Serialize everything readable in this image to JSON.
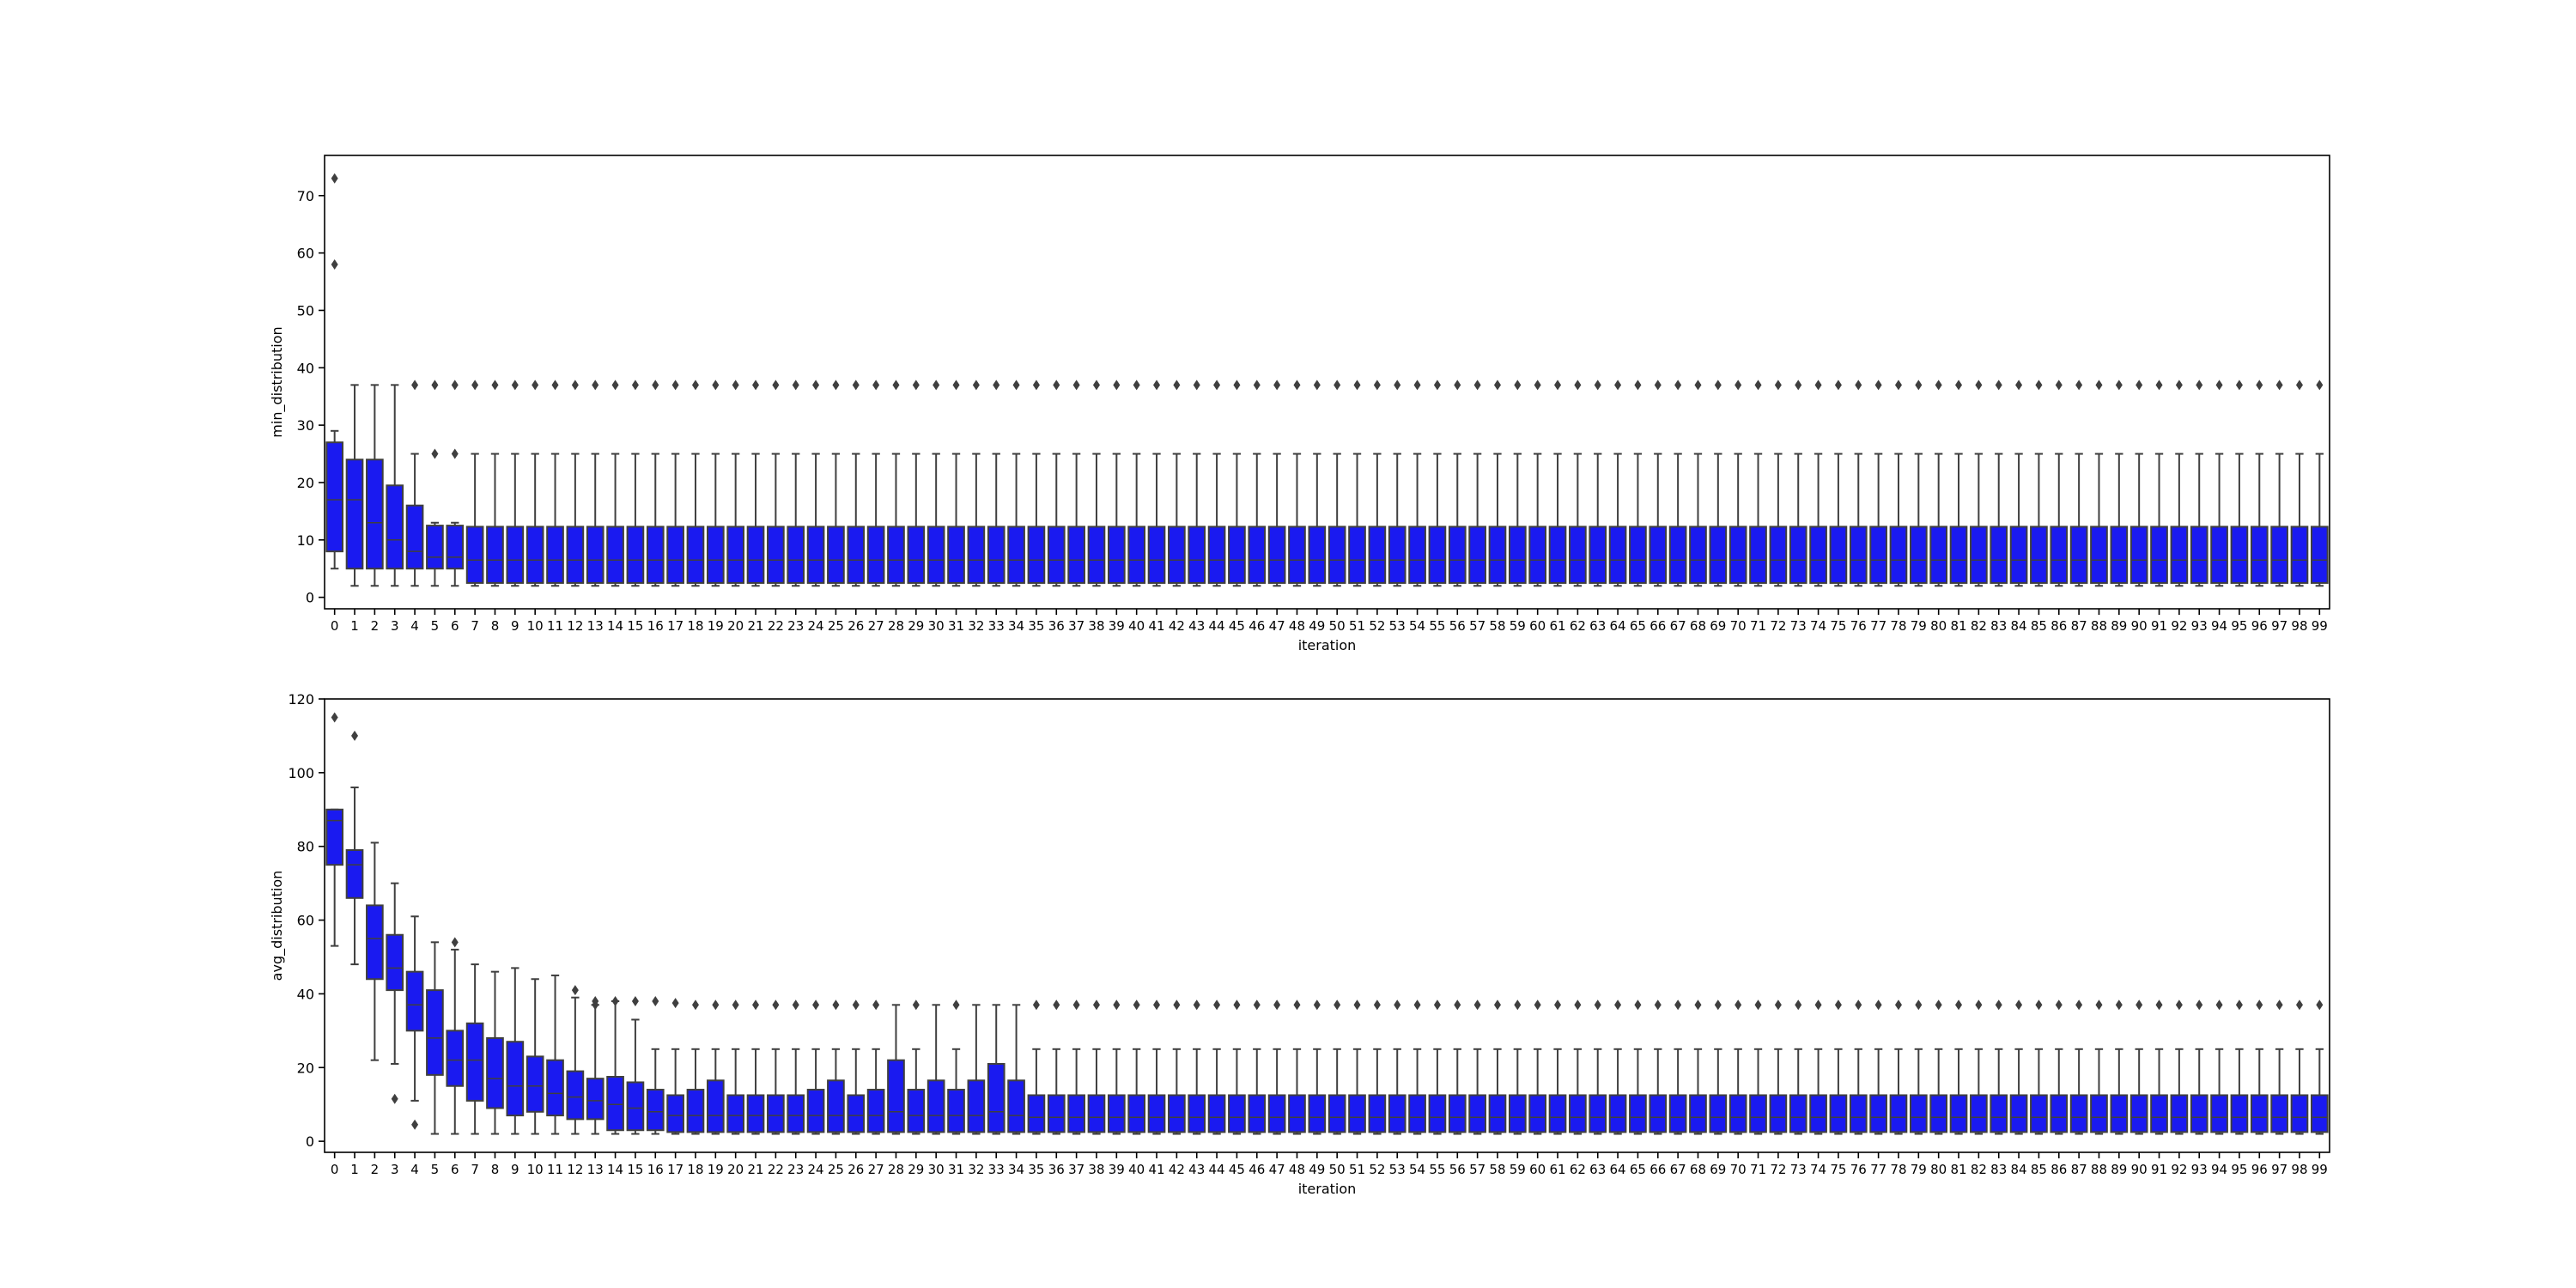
{
  "chart_data": [
    {
      "type": "box",
      "xlabel": "iteration",
      "ylabel": "min_distribution",
      "ylim": [
        -2,
        77
      ],
      "yticks": [
        0,
        10,
        20,
        30,
        40,
        50,
        60,
        70
      ],
      "x_start": 0,
      "x_end": 99,
      "box_color": "#1a1af0",
      "boxes_first": [
        {
          "x": 0,
          "q1": 8,
          "med": 17,
          "q3": 27,
          "lo": 5,
          "hi": 29,
          "fl": [
            58,
            73
          ]
        },
        {
          "x": 1,
          "q1": 5,
          "med": 17,
          "q3": 24,
          "lo": 2,
          "hi": 37,
          "fl": []
        },
        {
          "x": 2,
          "q1": 5,
          "med": 13,
          "q3": 24,
          "lo": 2,
          "hi": 37,
          "fl": []
        },
        {
          "x": 3,
          "q1": 5,
          "med": 10,
          "q3": 19.5,
          "lo": 2,
          "hi": 37,
          "fl": []
        },
        {
          "x": 4,
          "q1": 5,
          "med": 8,
          "q3": 16,
          "lo": 2,
          "hi": 25,
          "fl": [
            37
          ]
        },
        {
          "x": 5,
          "q1": 5,
          "med": 7,
          "q3": 12.5,
          "lo": 2,
          "hi": 13,
          "fl": [
            25,
            37
          ]
        },
        {
          "x": 6,
          "q1": 5,
          "med": 7,
          "q3": 12.5,
          "lo": 2,
          "hi": 13,
          "fl": [
            25,
            37
          ]
        }
      ],
      "steady": {
        "q1": 2.5,
        "med": 6.5,
        "q3": 12.3,
        "lo": 2,
        "hi": 25,
        "fl": [
          37
        ]
      }
    },
    {
      "type": "box",
      "xlabel": "iteration",
      "ylabel": "avg_distribution",
      "ylim": [
        -3,
        120
      ],
      "yticks": [
        0,
        20,
        40,
        60,
        80,
        100,
        120
      ],
      "x_start": 0,
      "x_end": 99,
      "box_color": "#1a1af0",
      "boxes_first": [
        {
          "x": 0,
          "q1": 75,
          "med": 87,
          "q3": 90,
          "lo": 53,
          "hi": 90,
          "fl": [
            115
          ]
        },
        {
          "x": 1,
          "q1": 66,
          "med": 75,
          "q3": 79,
          "lo": 48,
          "hi": 96,
          "fl": [
            110
          ]
        },
        {
          "x": 2,
          "q1": 44,
          "med": 55,
          "q3": 64,
          "lo": 22,
          "hi": 81,
          "fl": []
        },
        {
          "x": 3,
          "q1": 41,
          "med": 47,
          "q3": 56,
          "lo": 21,
          "hi": 70,
          "fl": [
            11.5
          ]
        },
        {
          "x": 4,
          "q1": 30,
          "med": 37,
          "q3": 46,
          "lo": 11,
          "hi": 61,
          "fl": [
            4.5
          ]
        },
        {
          "x": 5,
          "q1": 18,
          "med": 28,
          "q3": 41,
          "lo": 2,
          "hi": 54,
          "fl": []
        },
        {
          "x": 6,
          "q1": 15,
          "med": 22,
          "q3": 30,
          "lo": 2,
          "hi": 52,
          "fl": [
            54
          ]
        },
        {
          "x": 7,
          "q1": 11,
          "med": 22,
          "q3": 32,
          "lo": 2,
          "hi": 48,
          "fl": []
        },
        {
          "x": 8,
          "q1": 9,
          "med": 17,
          "q3": 28,
          "lo": 2,
          "hi": 46,
          "fl": []
        },
        {
          "x": 9,
          "q1": 7,
          "med": 15,
          "q3": 27,
          "lo": 2,
          "hi": 47,
          "fl": []
        },
        {
          "x": 10,
          "q1": 8,
          "med": 15,
          "q3": 23,
          "lo": 2,
          "hi": 44,
          "fl": []
        },
        {
          "x": 11,
          "q1": 7,
          "med": 13,
          "q3": 22,
          "lo": 2,
          "hi": 45,
          "fl": []
        },
        {
          "x": 12,
          "q1": 6,
          "med": 12,
          "q3": 19,
          "lo": 2,
          "hi": 39,
          "fl": [
            41
          ]
        },
        {
          "x": 13,
          "q1": 6,
          "med": 11,
          "q3": 17,
          "lo": 2,
          "hi": 37,
          "fl": [
            37,
            38
          ]
        },
        {
          "x": 14,
          "q1": 3,
          "med": 10,
          "q3": 17.5,
          "lo": 2,
          "hi": 38,
          "fl": [
            38
          ]
        },
        {
          "x": 15,
          "q1": 3,
          "med": 9,
          "q3": 16,
          "lo": 2,
          "hi": 33,
          "fl": [
            38
          ]
        },
        {
          "x": 16,
          "q1": 3,
          "med": 8,
          "q3": 14,
          "lo": 2,
          "hi": 25,
          "fl": [
            38
          ]
        },
        {
          "x": 17,
          "q1": 2.5,
          "med": 7,
          "q3": 12.5,
          "lo": 2,
          "hi": 25,
          "fl": [
            37.5
          ]
        },
        {
          "x": 18,
          "q1": 2.5,
          "med": 7,
          "q3": 14,
          "lo": 2,
          "hi": 25,
          "fl": [
            37
          ]
        },
        {
          "x": 19,
          "q1": 2.5,
          "med": 7,
          "q3": 16.5,
          "lo": 2,
          "hi": 25,
          "fl": [
            37
          ]
        },
        {
          "x": 20,
          "q1": 2.5,
          "med": 7,
          "q3": 12.5,
          "lo": 2,
          "hi": 25,
          "fl": [
            37
          ]
        },
        {
          "x": 21,
          "q1": 2.5,
          "med": 7,
          "q3": 12.5,
          "lo": 2,
          "hi": 25,
          "fl": [
            37
          ]
        },
        {
          "x": 22,
          "q1": 2.5,
          "med": 7,
          "q3": 12.5,
          "lo": 2,
          "hi": 25,
          "fl": [
            37
          ]
        },
        {
          "x": 23,
          "q1": 2.5,
          "med": 7,
          "q3": 12.5,
          "lo": 2,
          "hi": 25,
          "fl": [
            37
          ]
        },
        {
          "x": 24,
          "q1": 2.5,
          "med": 7,
          "q3": 14,
          "lo": 2,
          "hi": 25,
          "fl": [
            37
          ]
        },
        {
          "x": 25,
          "q1": 2.5,
          "med": 7,
          "q3": 16.5,
          "lo": 2,
          "hi": 25,
          "fl": [
            37
          ]
        },
        {
          "x": 26,
          "q1": 2.5,
          "med": 7,
          "q3": 12.5,
          "lo": 2,
          "hi": 25,
          "fl": [
            37
          ]
        },
        {
          "x": 27,
          "q1": 2.5,
          "med": 7,
          "q3": 14,
          "lo": 2,
          "hi": 25,
          "fl": [
            37
          ]
        },
        {
          "x": 28,
          "q1": 2.5,
          "med": 8,
          "q3": 22,
          "lo": 2,
          "hi": 37,
          "fl": []
        },
        {
          "x": 29,
          "q1": 2.5,
          "med": 7,
          "q3": 14,
          "lo": 2,
          "hi": 25,
          "fl": [
            37
          ]
        },
        {
          "x": 30,
          "q1": 2.5,
          "med": 7,
          "q3": 16.5,
          "lo": 2,
          "hi": 37,
          "fl": []
        },
        {
          "x": 31,
          "q1": 2.5,
          "med": 7,
          "q3": 14,
          "lo": 2,
          "hi": 25,
          "fl": [
            37
          ]
        },
        {
          "x": 32,
          "q1": 2.5,
          "med": 7,
          "q3": 16.5,
          "lo": 2,
          "hi": 37,
          "fl": []
        },
        {
          "x": 33,
          "q1": 2.5,
          "med": 8,
          "q3": 21,
          "lo": 2,
          "hi": 37,
          "fl": []
        },
        {
          "x": 34,
          "q1": 2.5,
          "med": 7,
          "q3": 16.5,
          "lo": 2,
          "hi": 37,
          "fl": []
        }
      ],
      "steady": {
        "q1": 2.5,
        "med": 6.5,
        "q3": 12.5,
        "lo": 2,
        "hi": 25,
        "fl": [
          37
        ]
      }
    }
  ]
}
